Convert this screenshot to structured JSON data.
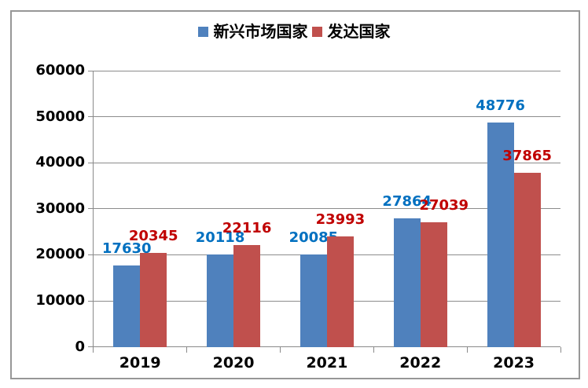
{
  "chart_data": {
    "type": "bar",
    "title": "",
    "xlabel": "",
    "ylabel": "",
    "categories": [
      "2019",
      "2020",
      "2021",
      "2022",
      "2023"
    ],
    "series": [
      {
        "name": "新兴市场国家",
        "color": "#4F81BD",
        "label_color": "#0070C0",
        "values": [
          17630,
          20118,
          20085,
          27864,
          48776
        ]
      },
      {
        "name": "发达国家",
        "color": "#C0504D",
        "label_color": "#C00000",
        "values": [
          20345,
          22116,
          23993,
          27039,
          37865
        ]
      }
    ],
    "ylim": [
      0,
      60000
    ],
    "yticks": [
      0,
      10000,
      20000,
      30000,
      40000,
      50000,
      60000
    ],
    "grid": true,
    "legend_position": "top",
    "data_labels": true
  },
  "colors": {
    "background": "#FFFFFF",
    "gridline": "#8C8C8C",
    "axis": "#8A8A8A",
    "chart_border": "#979797",
    "tick_label": "#000000"
  }
}
